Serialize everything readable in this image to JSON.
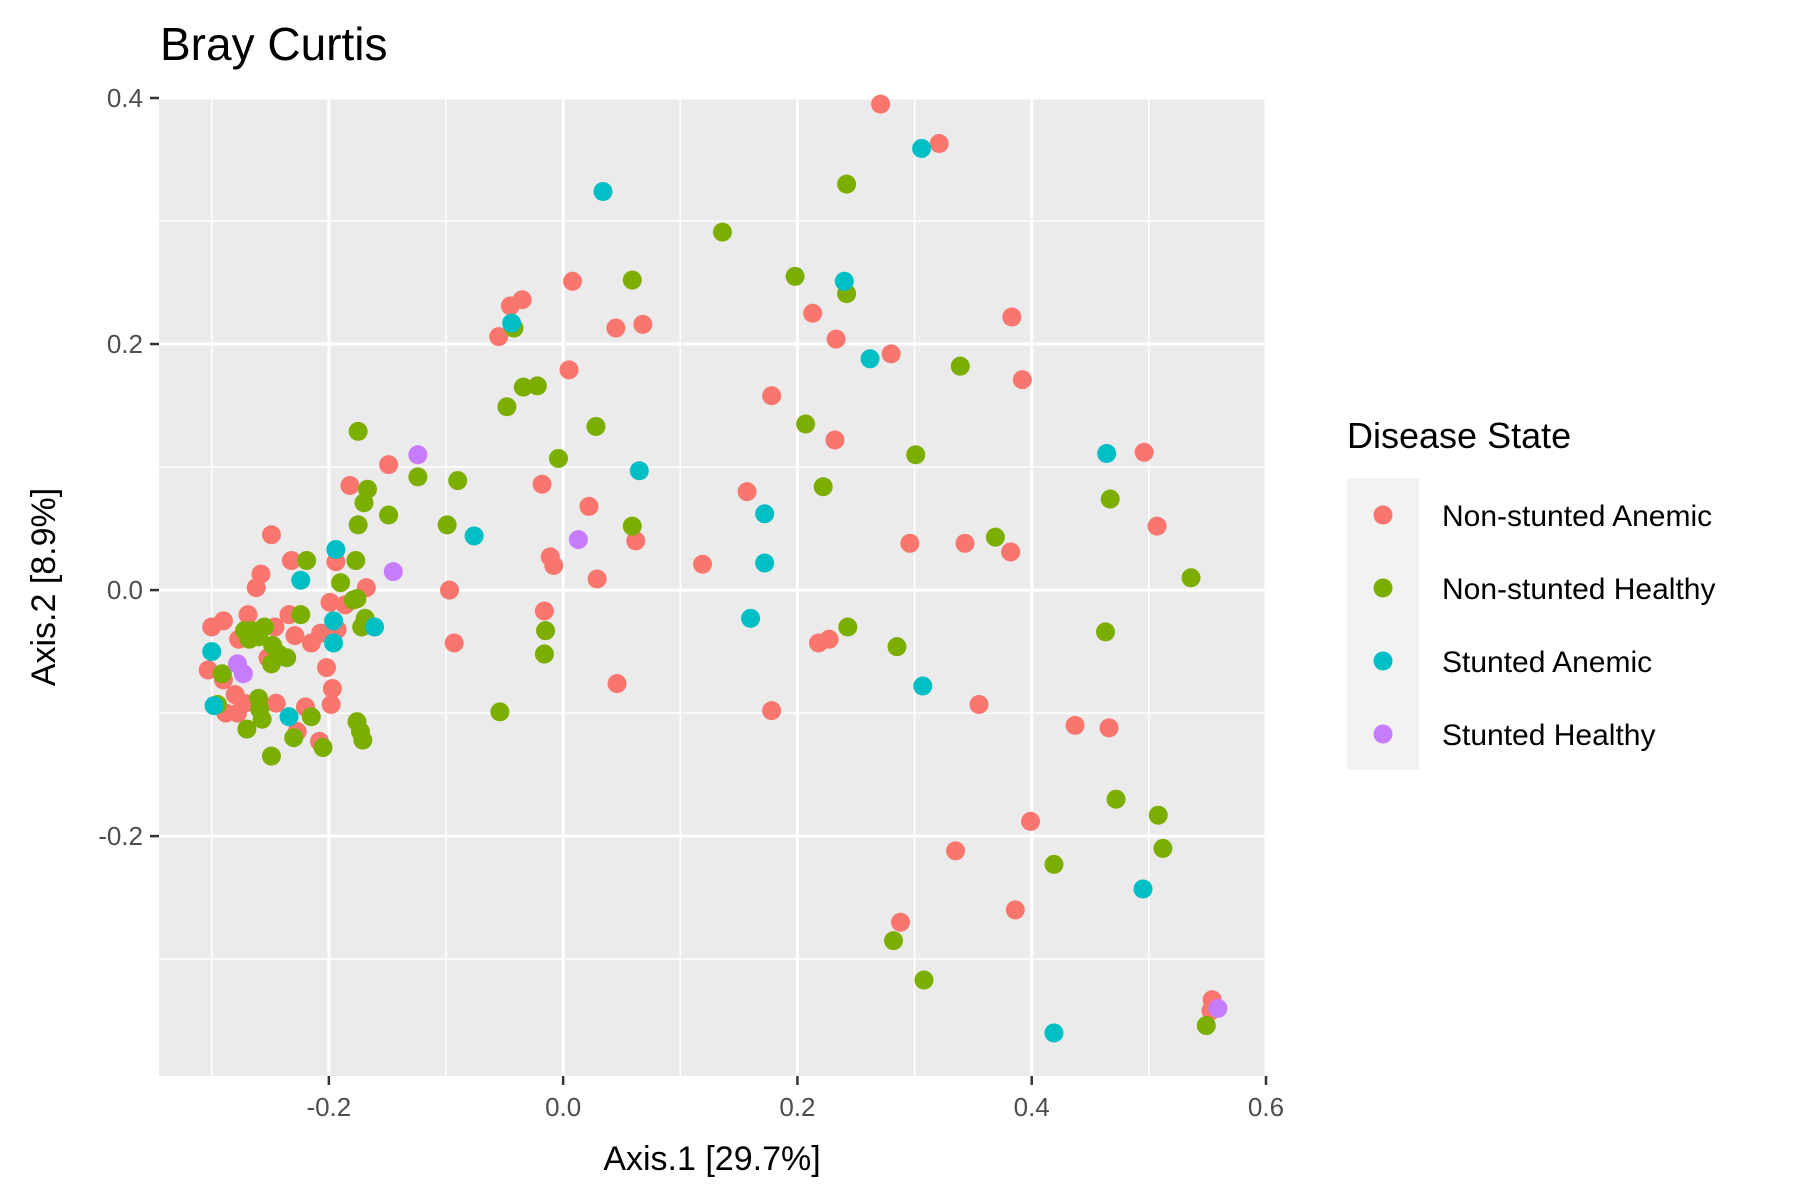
{
  "chart_data": {
    "type": "scatter",
    "title": "Bray Curtis",
    "xlabel": "Axis.1   [29.7%]",
    "ylabel": "Axis.2   [8.9%]",
    "xlim": [
      -0.345,
      0.6
    ],
    "ylim": [
      -0.395,
      0.4
    ],
    "x_ticks": [
      -0.2,
      0.0,
      0.2,
      0.4,
      0.6
    ],
    "x_tick_labels": [
      "-0.2",
      "0.0",
      "0.2",
      "0.4",
      "0.6"
    ],
    "y_ticks": [
      -0.2,
      0.0,
      0.2,
      0.4
    ],
    "y_tick_labels": [
      "-0.2",
      "0.0",
      "0.2",
      "0.4"
    ],
    "grid": true,
    "legend": {
      "title": "Disease State",
      "position": "right"
    },
    "series": [
      {
        "name": "Non-stunted Anemic",
        "color": "#F8766D",
        "points": [
          [
            0.271,
            0.395
          ],
          [
            0.321,
            0.363
          ],
          [
            0.008,
            0.251
          ],
          [
            -0.035,
            0.236
          ],
          [
            -0.045,
            0.231
          ],
          [
            0.045,
            0.213
          ],
          [
            0.068,
            0.216
          ],
          [
            -0.055,
            0.206
          ],
          [
            0.213,
            0.225
          ],
          [
            0.233,
            0.204
          ],
          [
            0.28,
            0.192
          ],
          [
            0.383,
            0.222
          ],
          [
            0.392,
            0.171
          ],
          [
            0.005,
            0.179
          ],
          [
            0.178,
            0.158
          ],
          [
            0.232,
            0.122
          ],
          [
            0.496,
            0.112
          ],
          [
            0.507,
            0.052
          ],
          [
            -0.149,
            0.102
          ],
          [
            -0.182,
            0.085
          ],
          [
            -0.018,
            0.086
          ],
          [
            0.157,
            0.08
          ],
          [
            0.022,
            0.068
          ],
          [
            -0.011,
            0.027
          ],
          [
            -0.008,
            0.02
          ],
          [
            0.062,
            0.04
          ],
          [
            0.029,
            0.009
          ],
          [
            0.119,
            0.021
          ],
          [
            0.296,
            0.038
          ],
          [
            0.343,
            0.038
          ],
          [
            0.382,
            0.031
          ],
          [
            -0.097,
            0.0
          ],
          [
            -0.016,
            -0.017
          ],
          [
            -0.093,
            -0.043
          ],
          [
            0.218,
            -0.043
          ],
          [
            0.227,
            -0.04
          ],
          [
            0.046,
            -0.076
          ],
          [
            0.178,
            -0.098
          ],
          [
            0.355,
            -0.093
          ],
          [
            0.437,
            -0.11
          ],
          [
            0.466,
            -0.112
          ],
          [
            0.399,
            -0.188
          ],
          [
            0.335,
            -0.212
          ],
          [
            0.288,
            -0.27
          ],
          [
            0.386,
            -0.26
          ],
          [
            0.554,
            -0.333
          ],
          [
            0.553,
            -0.342
          ],
          [
            -0.249,
            0.045
          ],
          [
            -0.232,
            0.024
          ],
          [
            -0.258,
            0.013
          ],
          [
            -0.262,
            0.002
          ],
          [
            -0.194,
            0.023
          ],
          [
            -0.168,
            0.002
          ],
          [
            -0.3,
            -0.03
          ],
          [
            -0.29,
            -0.025
          ],
          [
            -0.277,
            -0.04
          ],
          [
            -0.246,
            -0.03
          ],
          [
            -0.229,
            -0.037
          ],
          [
            -0.215,
            -0.043
          ],
          [
            -0.207,
            -0.035
          ],
          [
            -0.199,
            -0.01
          ],
          [
            -0.186,
            -0.012
          ],
          [
            -0.202,
            -0.063
          ],
          [
            -0.197,
            -0.08
          ],
          [
            -0.198,
            -0.093
          ],
          [
            -0.303,
            -0.065
          ],
          [
            -0.29,
            -0.073
          ],
          [
            -0.28,
            -0.085
          ],
          [
            -0.272,
            -0.092
          ],
          [
            -0.245,
            -0.092
          ],
          [
            -0.288,
            -0.1
          ],
          [
            -0.278,
            -0.1
          ],
          [
            -0.22,
            -0.095
          ],
          [
            -0.227,
            -0.115
          ],
          [
            -0.208,
            -0.123
          ],
          [
            -0.234,
            -0.02
          ],
          [
            -0.193,
            -0.032
          ],
          [
            -0.269,
            -0.02
          ],
          [
            -0.252,
            -0.055
          ]
        ]
      },
      {
        "name": "Non-stunted Healthy",
        "color": "#7CAE00",
        "points": [
          [
            0.242,
            0.33
          ],
          [
            0.136,
            0.291
          ],
          [
            0.198,
            0.255
          ],
          [
            0.059,
            0.252
          ],
          [
            0.242,
            0.241
          ],
          [
            -0.042,
            0.213
          ],
          [
            0.339,
            0.182
          ],
          [
            -0.034,
            0.165
          ],
          [
            -0.022,
            0.166
          ],
          [
            -0.048,
            0.149
          ],
          [
            0.207,
            0.135
          ],
          [
            0.028,
            0.133
          ],
          [
            -0.175,
            0.129
          ],
          [
            -0.004,
            0.107
          ],
          [
            0.301,
            0.11
          ],
          [
            -0.124,
            0.092
          ],
          [
            -0.09,
            0.089
          ],
          [
            -0.167,
            0.082
          ],
          [
            -0.17,
            0.071
          ],
          [
            0.222,
            0.084
          ],
          [
            0.467,
            0.074
          ],
          [
            -0.149,
            0.061
          ],
          [
            -0.175,
            0.053
          ],
          [
            -0.099,
            0.053
          ],
          [
            0.059,
            0.052
          ],
          [
            0.369,
            0.043
          ],
          [
            0.536,
            0.01
          ],
          [
            -0.219,
            0.024
          ],
          [
            -0.177,
            0.024
          ],
          [
            -0.19,
            0.006
          ],
          [
            -0.176,
            -0.007
          ],
          [
            -0.179,
            -0.008
          ],
          [
            -0.169,
            -0.023
          ],
          [
            -0.172,
            -0.03
          ],
          [
            -0.224,
            -0.02
          ],
          [
            -0.015,
            -0.033
          ],
          [
            0.243,
            -0.03
          ],
          [
            0.463,
            -0.034
          ],
          [
            -0.016,
            -0.052
          ],
          [
            0.285,
            -0.046
          ],
          [
            -0.054,
            -0.099
          ],
          [
            -0.266,
            -0.033
          ],
          [
            -0.272,
            -0.033
          ],
          [
            -0.26,
            -0.038
          ],
          [
            -0.255,
            -0.03
          ],
          [
            -0.248,
            -0.045
          ],
          [
            -0.243,
            -0.052
          ],
          [
            -0.236,
            -0.055
          ],
          [
            -0.249,
            -0.06
          ],
          [
            -0.268,
            -0.04
          ],
          [
            -0.291,
            -0.068
          ],
          [
            -0.295,
            -0.093
          ],
          [
            -0.26,
            -0.088
          ],
          [
            -0.259,
            -0.097
          ],
          [
            -0.257,
            -0.105
          ],
          [
            -0.27,
            -0.113
          ],
          [
            -0.176,
            -0.107
          ],
          [
            -0.173,
            -0.115
          ],
          [
            -0.171,
            -0.122
          ],
          [
            -0.215,
            -0.103
          ],
          [
            -0.23,
            -0.12
          ],
          [
            -0.205,
            -0.128
          ],
          [
            -0.249,
            -0.135
          ],
          [
            0.472,
            -0.17
          ],
          [
            0.508,
            -0.183
          ],
          [
            0.512,
            -0.21
          ],
          [
            0.419,
            -0.223
          ],
          [
            0.282,
            -0.285
          ],
          [
            0.308,
            -0.317
          ],
          [
            0.549,
            -0.354
          ]
        ]
      },
      {
        "name": "Stunted Anemic",
        "color": "#00BFC4",
        "points": [
          [
            0.306,
            0.359
          ],
          [
            0.034,
            0.324
          ],
          [
            0.24,
            0.251
          ],
          [
            0.262,
            0.188
          ],
          [
            -0.044,
            0.217
          ],
          [
            0.464,
            0.111
          ],
          [
            0.065,
            0.097
          ],
          [
            0.172,
            0.062
          ],
          [
            0.172,
            0.022
          ],
          [
            -0.076,
            0.044
          ],
          [
            -0.194,
            0.033
          ],
          [
            -0.224,
            0.008
          ],
          [
            -0.161,
            -0.03
          ],
          [
            -0.196,
            -0.025
          ],
          [
            -0.196,
            -0.043
          ],
          [
            0.16,
            -0.023
          ],
          [
            0.307,
            -0.078
          ],
          [
            -0.3,
            -0.05
          ],
          [
            -0.298,
            -0.094
          ],
          [
            -0.234,
            -0.103
          ],
          [
            0.495,
            -0.243
          ],
          [
            0.419,
            -0.36
          ]
        ]
      },
      {
        "name": "Stunted Healthy",
        "color": "#C77CFF",
        "points": [
          [
            -0.124,
            0.11
          ],
          [
            0.013,
            0.041
          ],
          [
            -0.145,
            0.015
          ],
          [
            -0.278,
            -0.06
          ],
          [
            -0.273,
            -0.068
          ],
          [
            0.559,
            -0.34
          ]
        ]
      }
    ]
  }
}
